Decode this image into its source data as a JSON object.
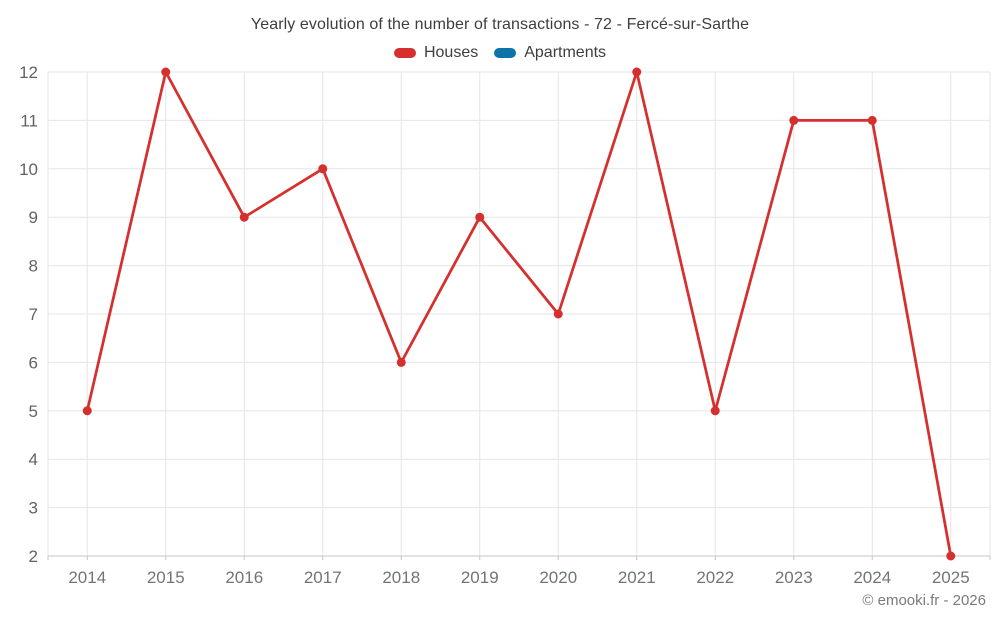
{
  "chart_data": {
    "type": "line",
    "title": "Yearly evolution of the number of transactions - 72 - Fercé-sur-Sarthe",
    "categories": [
      "2014",
      "2015",
      "2016",
      "2017",
      "2018",
      "2019",
      "2020",
      "2021",
      "2022",
      "2023",
      "2024",
      "2025"
    ],
    "series": [
      {
        "name": "Houses",
        "color": "#d5302d",
        "values": [
          5,
          12,
          9,
          10,
          6,
          9,
          7,
          12,
          5,
          11,
          11,
          2
        ]
      },
      {
        "name": "Apartments",
        "color": "#0e73a8",
        "values": []
      }
    ],
    "xlabel": "",
    "ylabel": "",
    "ylim": [
      2,
      12
    ],
    "y_ticks": [
      2,
      3,
      4,
      5,
      6,
      7,
      8,
      9,
      10,
      11,
      12
    ],
    "grid": true,
    "legend_position": "top",
    "marker": "circle",
    "grid_color": "#e6e6e6",
    "axis_color": "#c6c6c6"
  },
  "footer": {
    "copyright": "© emooki.fr - 2026"
  }
}
